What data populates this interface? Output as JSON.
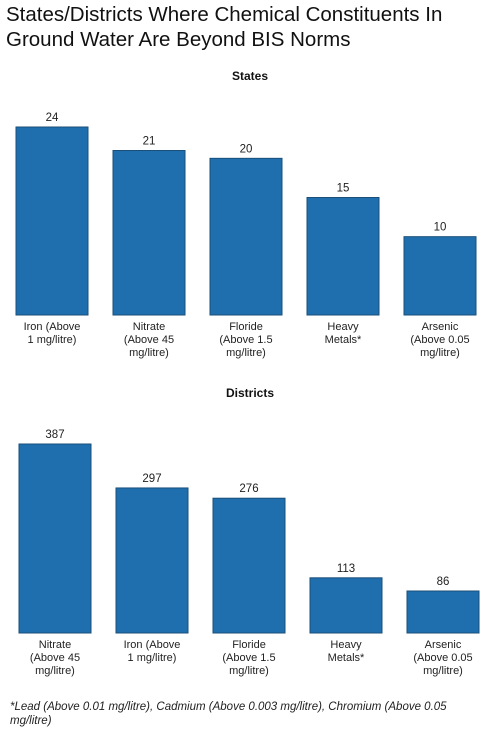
{
  "title": "States/Districts Where Chemical Constituents In Ground Water Are Beyond BIS Norms",
  "footnote": "*Lead (Above 0.01 mg/litre), Cadmium (Above 0.003 mg/litre), Chromium (Above 0.05 mg/litre)",
  "colors": {
    "bar": "#1f6fae",
    "bar_stroke": "#1a4f7a"
  },
  "chart_data": [
    {
      "type": "bar",
      "title": "States",
      "xlabel": "",
      "ylabel": "",
      "categories": [
        [
          "Iron (Above",
          "1 mg/litre)"
        ],
        [
          "Nitrate",
          "(Above 45",
          "mg/litre)"
        ],
        [
          "Floride",
          "(Above 1.5",
          "mg/litre)"
        ],
        [
          "Heavy",
          "Metals*"
        ],
        [
          "Arsenic",
          "(Above 0.05",
          "mg/litre)"
        ]
      ],
      "values": [
        24,
        21,
        20,
        15,
        10
      ],
      "ylim": [
        0,
        24
      ]
    },
    {
      "type": "bar",
      "title": "Districts",
      "xlabel": "",
      "ylabel": "",
      "categories": [
        [
          "Nitrate",
          "(Above 45",
          "mg/litre)"
        ],
        [
          "Iron (Above",
          "1 mg/litre)"
        ],
        [
          "Floride",
          "(Above 1.5",
          "mg/litre)"
        ],
        [
          "Heavy",
          "Metals*"
        ],
        [
          "Arsenic",
          "(Above 0.05",
          "mg/litre)"
        ]
      ],
      "values": [
        387,
        297,
        276,
        113,
        86
      ],
      "ylim": [
        0,
        387
      ]
    }
  ]
}
